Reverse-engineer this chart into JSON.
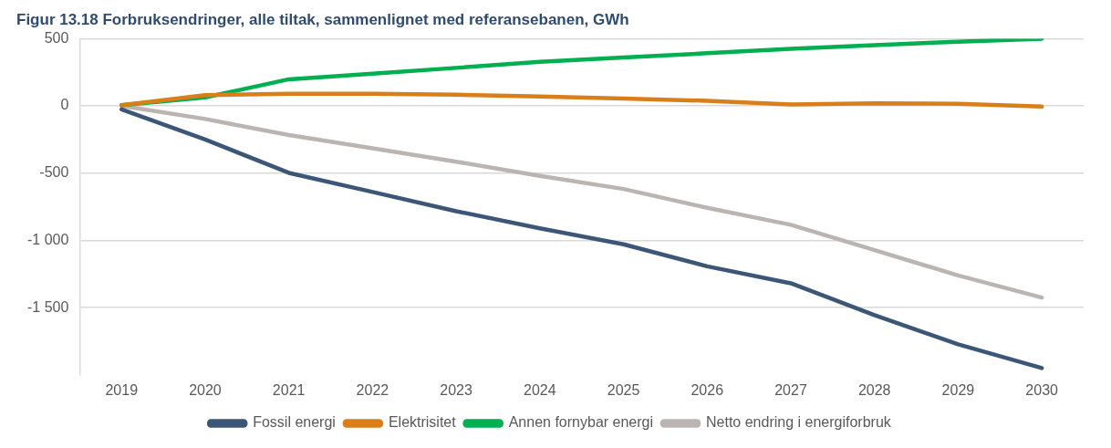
{
  "chart_data": {
    "type": "line",
    "title": "Figur 13.18 Forbruksendringer, alle tiltak, sammenlignet med referansebanen, GWh",
    "categories": [
      "2019",
      "2020",
      "2021",
      "2022",
      "2023",
      "2024",
      "2025",
      "2026",
      "2027",
      "2028",
      "2029",
      "2030"
    ],
    "series": [
      {
        "name": "Fossil energi",
        "color": "#3c5677",
        "values": [
          -25,
          -250,
          -498,
          -640,
          -783,
          -910,
          -1029,
          -1193,
          -1319,
          -1556,
          -1773,
          -1950
        ]
      },
      {
        "name": "Elektrisitet",
        "color": "#d97f1a",
        "values": [
          5,
          80,
          90,
          90,
          83,
          70,
          55,
          38,
          10,
          20,
          15,
          -5
        ]
      },
      {
        "name": "Annen fornybar energi",
        "color": "#00b050",
        "values": [
          5,
          63,
          198,
          240,
          283,
          328,
          360,
          392,
          425,
          452,
          478,
          500
        ]
      },
      {
        "name": "Netto endring i energiforbruk",
        "color": "#bab5b1",
        "values": [
          0,
          -97,
          -217,
          -315,
          -415,
          -520,
          -618,
          -758,
          -884,
          -1072,
          -1261,
          -1425
        ]
      }
    ],
    "ylim": [
      -2000,
      500
    ],
    "yticks": [
      500,
      0,
      -500,
      -1000,
      -1500
    ],
    "grid": "y",
    "legend": "bottom",
    "marker": "none",
    "line_style": "solid"
  }
}
